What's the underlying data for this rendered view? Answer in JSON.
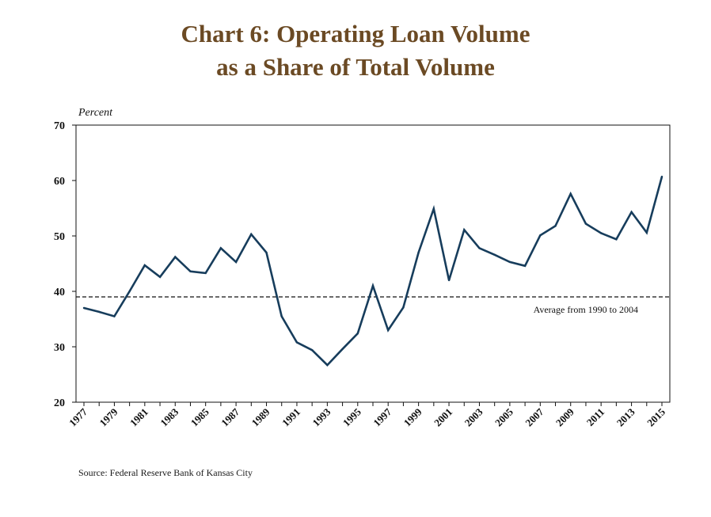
{
  "chart_data": {
    "type": "line",
    "title_line1": "Chart 6: Operating Loan Volume",
    "title_line2": "as a Share of Total Volume",
    "ylabel": "Percent",
    "ylim": [
      20,
      70
    ],
    "yticks": [
      20,
      30,
      40,
      50,
      60,
      70
    ],
    "xticks": [
      "1977",
      "1979",
      "1981",
      "1983",
      "1985",
      "1987",
      "1989",
      "1991",
      "1993",
      "1995",
      "1997",
      "1999",
      "2001",
      "2003",
      "2005",
      "2007",
      "2009",
      "2011",
      "2013",
      "2015"
    ],
    "x": [
      1977,
      1978,
      1979,
      1980,
      1981,
      1982,
      1983,
      1984,
      1985,
      1986,
      1987,
      1988,
      1989,
      1990,
      1991,
      1992,
      1993,
      1994,
      1995,
      1996,
      1997,
      1998,
      1999,
      2000,
      2001,
      2002,
      2003,
      2004,
      2005,
      2006,
      2007,
      2008,
      2009,
      2010,
      2011,
      2012,
      2013,
      2014,
      2015
    ],
    "series": [
      {
        "values": [
          37.0,
          36.3,
          35.5,
          40.0,
          44.7,
          42.6,
          46.2,
          43.6,
          43.3,
          47.8,
          45.3,
          50.3,
          47.0,
          35.5,
          30.8,
          29.4,
          26.7,
          29.6,
          32.4,
          41.0,
          33.0,
          37.1,
          47.0,
          54.9,
          42.0,
          51.1,
          47.8,
          46.6,
          45.3,
          44.6,
          50.1,
          51.8,
          57.6,
          52.2,
          50.5,
          49.4,
          54.3,
          50.6,
          60.7
        ],
        "color": "#173d5c"
      }
    ],
    "reference_line": {
      "value": 39.0,
      "label": "Average from 1990 to 2004",
      "style": "dashed",
      "color": "#111111"
    },
    "grid": false,
    "legend": "none",
    "source": "Source: Federal Reserve Bank of Kansas City"
  }
}
